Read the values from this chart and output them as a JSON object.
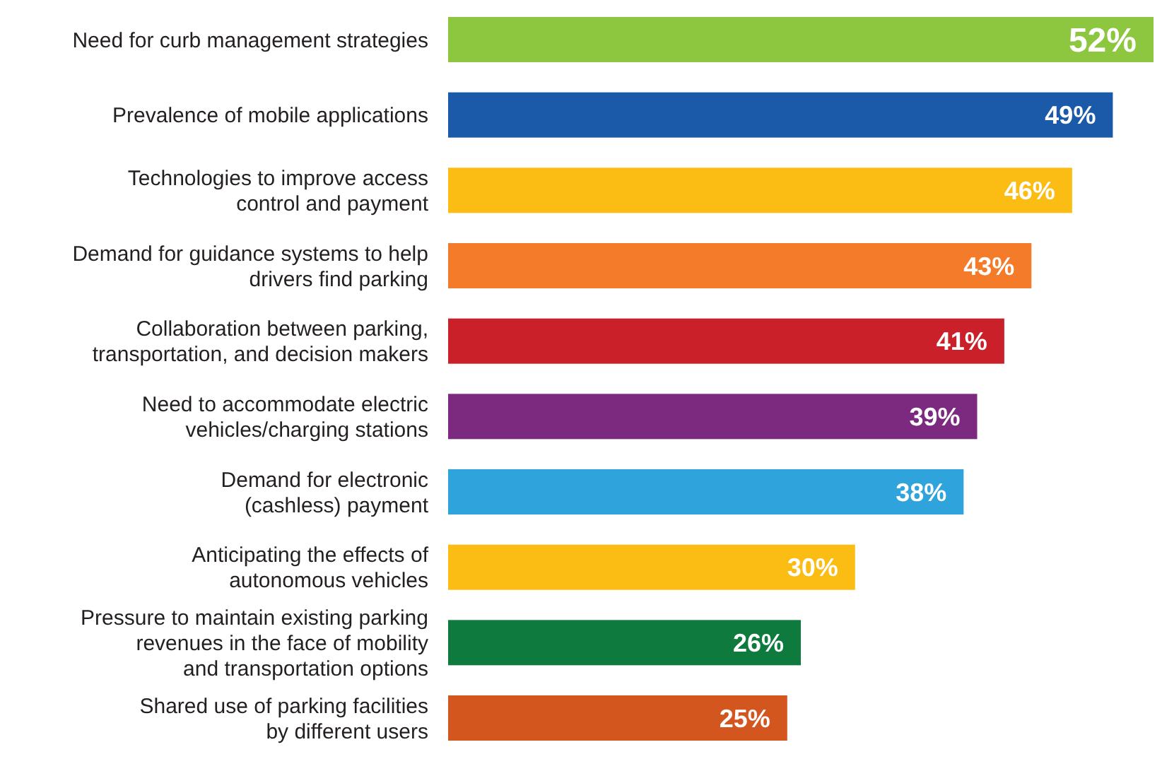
{
  "chart_data": {
    "type": "bar",
    "orientation": "horizontal",
    "categories": [
      "Need for curb management strategies",
      "Prevalence of mobile applications",
      "Technologies to improve access\ncontrol and payment",
      "Demand for guidance systems to help\ndrivers find parking",
      "Collaboration between parking,\ntransportation, and decision makers",
      "Need to accommodate electric\nvehicles/charging stations",
      "Demand for electronic\n(cashless) payment",
      "Anticipating the effects of\nautonomous vehicles",
      "Pressure to maintain existing parking\nrevenues in the face of mobility\nand transportation options",
      "Shared use of parking facilities\nby different users"
    ],
    "values": [
      52,
      49,
      46,
      43,
      41,
      39,
      38,
      30,
      26,
      25
    ],
    "value_labels": [
      "52%",
      "49%",
      "46%",
      "43%",
      "41%",
      "39%",
      "38%",
      "30%",
      "26%",
      "25%"
    ],
    "colors": [
      "#8dc63f",
      "#1b5aa8",
      "#fbbd14",
      "#f47b2a",
      "#c9202a",
      "#7b2a7f",
      "#2ea3dc",
      "#fbbd14",
      "#0f7a3e",
      "#d3561f"
    ]
  }
}
